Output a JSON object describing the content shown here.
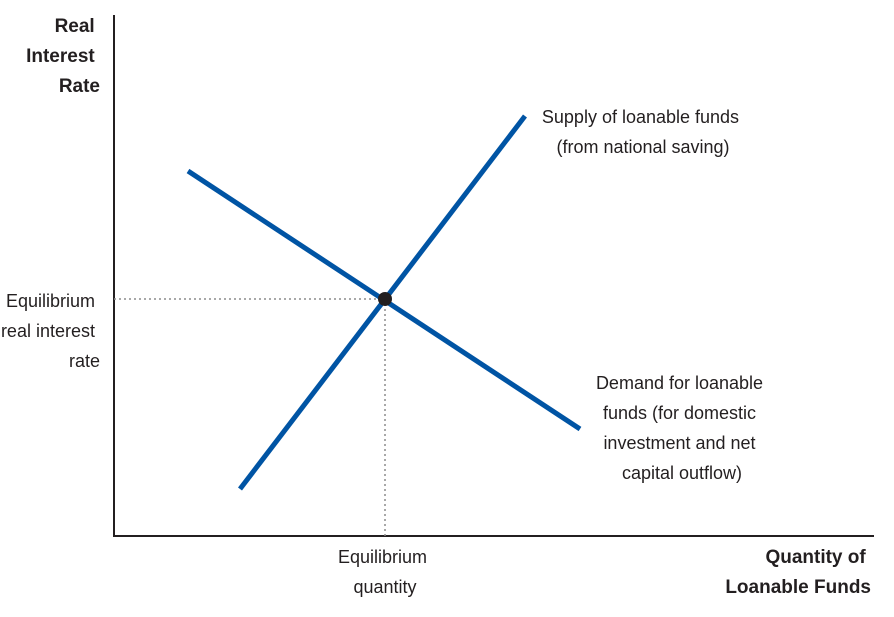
{
  "colors": {
    "curve": "#0054a4",
    "axis": "#231f20",
    "guide": "#8c8c8c",
    "point": "#231f20"
  },
  "y_axis_title": [
    "Real",
    "Interest",
    "Rate"
  ],
  "x_axis_title": [
    "Quantity of",
    "Loanable Funds"
  ],
  "equilibrium_rate_label": [
    "Equilibrium",
    "real interest",
    "rate"
  ],
  "equilibrium_quantity_label": [
    "Equilibrium",
    "quantity"
  ],
  "supply_label": [
    "Supply of loanable funds",
    "(from national saving)"
  ],
  "demand_label": [
    "Demand for loanable",
    "funds (for domestic",
    "investment and net",
    "capital outflow)"
  ]
}
